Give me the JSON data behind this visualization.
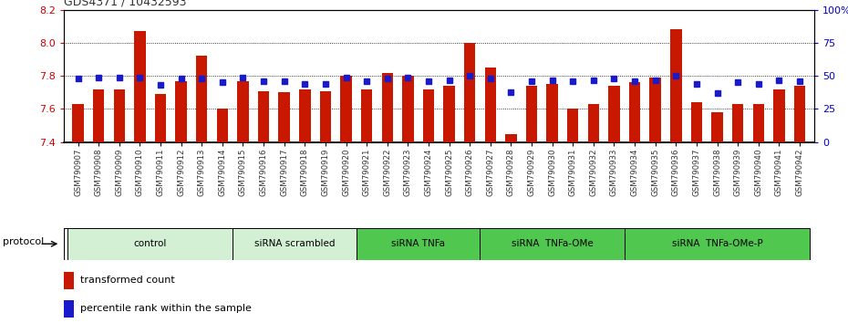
{
  "title": "GDS4371 / 10432593",
  "samples": [
    "GSM790907",
    "GSM790908",
    "GSM790909",
    "GSM790910",
    "GSM790911",
    "GSM790912",
    "GSM790913",
    "GSM790914",
    "GSM790915",
    "GSM790916",
    "GSM790917",
    "GSM790918",
    "GSM790919",
    "GSM790920",
    "GSM790921",
    "GSM790922",
    "GSM790923",
    "GSM790924",
    "GSM790925",
    "GSM790926",
    "GSM790927",
    "GSM790928",
    "GSM790929",
    "GSM790930",
    "GSM790931",
    "GSM790932",
    "GSM790933",
    "GSM790934",
    "GSM790935",
    "GSM790936",
    "GSM790937",
    "GSM790938",
    "GSM790939",
    "GSM790940",
    "GSM790941",
    "GSM790942"
  ],
  "red_values": [
    7.63,
    7.72,
    7.72,
    8.07,
    7.69,
    7.77,
    7.92,
    7.6,
    7.77,
    7.71,
    7.7,
    7.72,
    7.71,
    7.8,
    7.72,
    7.82,
    7.8,
    7.72,
    7.74,
    8.0,
    7.85,
    7.45,
    7.74,
    7.75,
    7.6,
    7.63,
    7.74,
    7.76,
    7.79,
    8.08,
    7.64,
    7.58,
    7.63,
    7.63,
    7.72,
    7.74
  ],
  "blue_values": [
    48,
    49,
    49,
    49,
    43,
    48,
    48,
    45,
    49,
    46,
    46,
    44,
    44,
    49,
    46,
    48,
    49,
    46,
    47,
    50,
    48,
    38,
    46,
    47,
    46,
    47,
    48,
    46,
    47,
    50,
    44,
    37,
    45,
    44,
    47,
    46
  ],
  "groups": [
    {
      "label": "control",
      "start": 0,
      "end": 8,
      "color": "#d4f0d4"
    },
    {
      "label": "siRNA scrambled",
      "start": 8,
      "end": 14,
      "color": "#d4f0d4"
    },
    {
      "label": "siRNA TNFa",
      "start": 14,
      "end": 20,
      "color": "#50c850"
    },
    {
      "label": "siRNA  TNFa-OMe",
      "start": 20,
      "end": 27,
      "color": "#50c850"
    },
    {
      "label": "siRNA  TNFa-OMe-P",
      "start": 27,
      "end": 36,
      "color": "#50c850"
    }
  ],
  "ylim_left": [
    7.4,
    8.2
  ],
  "ylim_right": [
    0,
    100
  ],
  "yticks_left": [
    7.4,
    7.6,
    7.8,
    8.0,
    8.2
  ],
  "yticks_right": [
    0,
    25,
    50,
    75,
    100
  ],
  "ytick_labels_right": [
    "0",
    "25",
    "50",
    "75",
    "100%"
  ],
  "grid_vals": [
    7.6,
    7.8,
    8.0
  ],
  "bar_color": "#c81800",
  "blue_color": "#1a1acd",
  "label_color_left": "#cc0000",
  "label_color_right": "#0000cc",
  "protocol_label": "protocol",
  "legend_red": "transformed count",
  "legend_blue": "percentile rank within the sample",
  "tick_label_color": "#333333",
  "title_color": "#333333",
  "title_fontsize": 9,
  "bar_width": 0.55
}
